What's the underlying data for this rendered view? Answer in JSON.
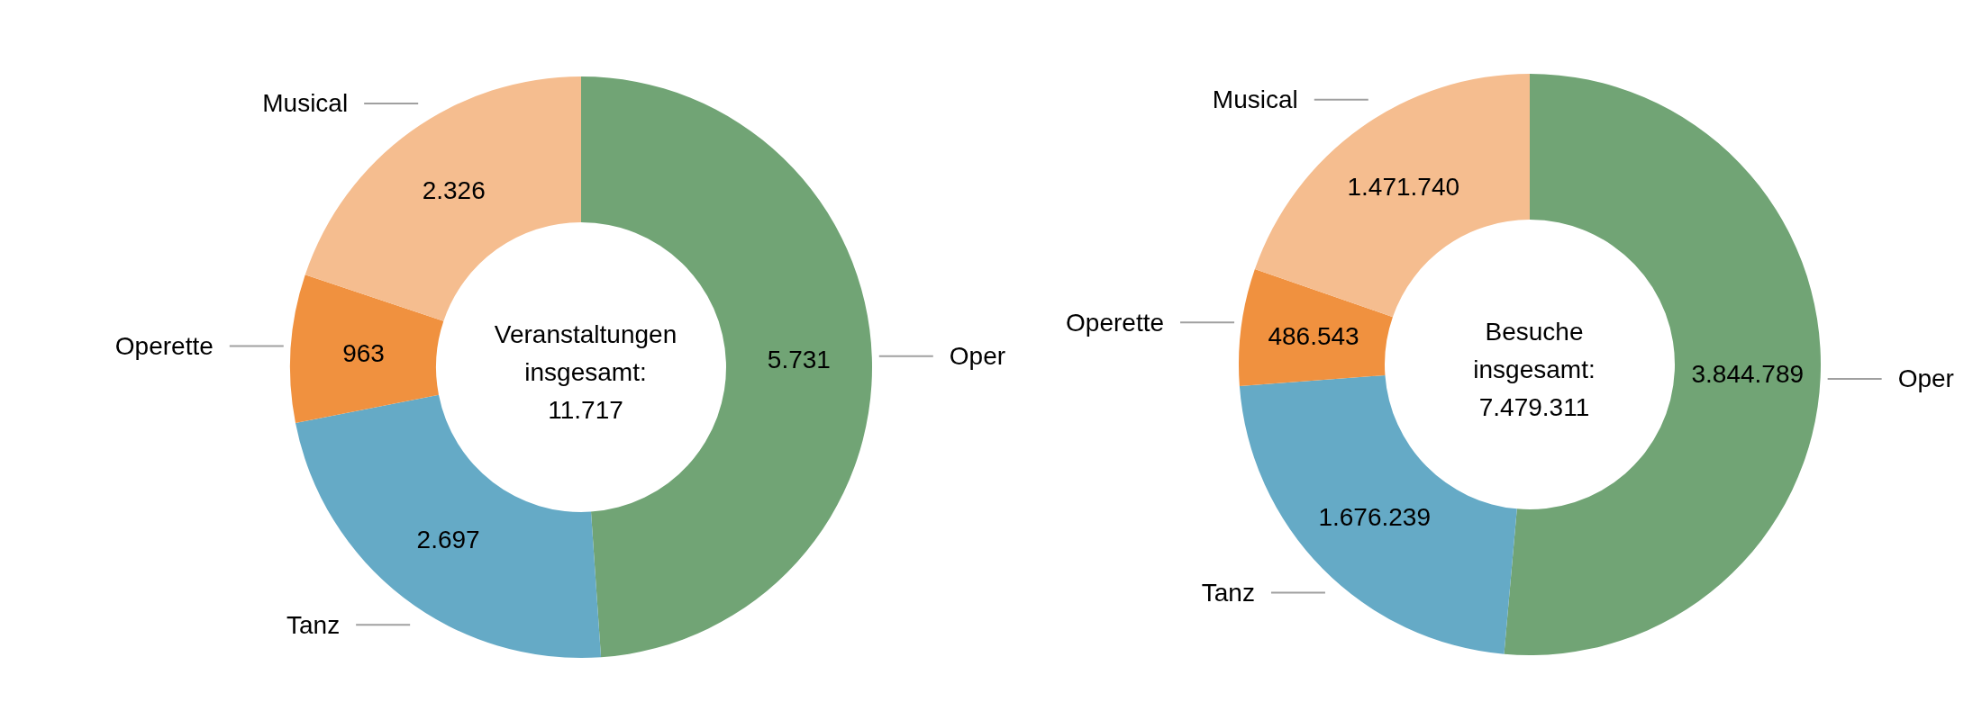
{
  "chart_data": [
    {
      "type": "donut",
      "title": "Veranstaltungen insgesamt: 11.717",
      "categories": [
        "Oper",
        "Tanz",
        "Operette",
        "Musical"
      ],
      "values": [
        5731,
        2697,
        963,
        2326
      ],
      "value_labels": [
        "5.731",
        "2.697",
        "963",
        "2.326"
      ],
      "colors": [
        "#71a475",
        "#65aac6",
        "#f0913f",
        "#f5bd8f"
      ]
    },
    {
      "type": "donut",
      "title": "Besuche insgesamt: 7.479.311",
      "categories": [
        "Oper",
        "Tanz",
        "Operette",
        "Musical"
      ],
      "values": [
        3844789,
        1676239,
        486543,
        1471740
      ],
      "value_labels": [
        "3.844.789",
        "1.676.239",
        "486.543",
        "1.471.740"
      ],
      "colors": [
        "#71a475",
        "#65aac6",
        "#f0913f",
        "#f5bd8f"
      ]
    }
  ]
}
